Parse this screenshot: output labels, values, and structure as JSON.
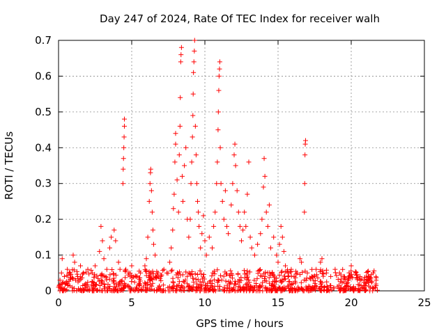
{
  "chart_data": {
    "type": "scatter",
    "title": "Day 247 of 2024, Rate Of TEC Index for receiver walh",
    "xlabel": "GPS time / hours",
    "ylabel": "ROTI / TECUs",
    "xlim": [
      0,
      25
    ],
    "ylim": [
      0,
      0.7
    ],
    "xticks": [
      0,
      5,
      10,
      15,
      20,
      25
    ],
    "yticks": [
      0,
      0.1,
      0.2,
      0.3,
      0.4,
      0.5,
      0.6,
      0.7
    ],
    "xtick_labels": [
      "0",
      "5",
      "10",
      "15",
      "20",
      "25"
    ],
    "ytick_labels": [
      "0",
      "0.1",
      "0.2",
      "0.3",
      "0.4",
      "0.5",
      "0.6",
      "0.7"
    ],
    "grid": true,
    "marker": "+",
    "color": "#ff0000",
    "series": [
      {
        "name": "ROTI",
        "points": [
          [
            0.0,
            0.01
          ],
          [
            0.1,
            0.03
          ],
          [
            0.2,
            0.05
          ],
          [
            0.25,
            0.09
          ],
          [
            0.4,
            0.04
          ],
          [
            0.6,
            0.06
          ],
          [
            0.8,
            0.05
          ],
          [
            1.0,
            0.1
          ],
          [
            1.1,
            0.08
          ],
          [
            1.3,
            0.04
          ],
          [
            1.5,
            0.07
          ],
          [
            1.7,
            0.05
          ],
          [
            2.0,
            0.06
          ],
          [
            2.3,
            0.05
          ],
          [
            2.5,
            0.07
          ],
          [
            2.8,
            0.11
          ],
          [
            2.9,
            0.18
          ],
          [
            3.0,
            0.14
          ],
          [
            3.1,
            0.09
          ],
          [
            3.3,
            0.06
          ],
          [
            3.5,
            0.12
          ],
          [
            3.6,
            0.15
          ],
          [
            3.8,
            0.17
          ],
          [
            3.9,
            0.14
          ],
          [
            4.1,
            0.08
          ],
          [
            4.2,
            0.06
          ],
          [
            4.4,
            0.3
          ],
          [
            4.42,
            0.34
          ],
          [
            4.44,
            0.37
          ],
          [
            4.46,
            0.4
          ],
          [
            4.48,
            0.43
          ],
          [
            4.5,
            0.46
          ],
          [
            4.5,
            0.48
          ],
          [
            4.6,
            0.06
          ],
          [
            4.8,
            0.05
          ],
          [
            5.0,
            0.07
          ],
          [
            5.3,
            0.04
          ],
          [
            5.6,
            0.05
          ],
          [
            5.9,
            0.07
          ],
          [
            6.0,
            0.09
          ],
          [
            6.1,
            0.15
          ],
          [
            6.2,
            0.25
          ],
          [
            6.25,
            0.3
          ],
          [
            6.28,
            0.33
          ],
          [
            6.3,
            0.34
          ],
          [
            6.35,
            0.28
          ],
          [
            6.4,
            0.22
          ],
          [
            6.45,
            0.17
          ],
          [
            6.5,
            0.13
          ],
          [
            6.6,
            0.1
          ],
          [
            6.8,
            0.05
          ],
          [
            7.0,
            0.04
          ],
          [
            7.2,
            0.06
          ],
          [
            7.4,
            0.05
          ],
          [
            7.6,
            0.08
          ],
          [
            7.7,
            0.12
          ],
          [
            7.8,
            0.17
          ],
          [
            7.85,
            0.23
          ],
          [
            7.9,
            0.27
          ],
          [
            7.95,
            0.36
          ],
          [
            8.0,
            0.41
          ],
          [
            8.0,
            0.44
          ],
          [
            8.1,
            0.31
          ],
          [
            8.2,
            0.22
          ],
          [
            8.25,
            0.38
          ],
          [
            8.3,
            0.46
          ],
          [
            8.32,
            0.54
          ],
          [
            8.35,
            0.64
          ],
          [
            8.37,
            0.66
          ],
          [
            8.4,
            0.68
          ],
          [
            8.45,
            0.32
          ],
          [
            8.5,
            0.25
          ],
          [
            8.6,
            0.35
          ],
          [
            8.7,
            0.4
          ],
          [
            8.8,
            0.2
          ],
          [
            8.9,
            0.15
          ],
          [
            9.0,
            0.2
          ],
          [
            9.05,
            0.3
          ],
          [
            9.1,
            0.36
          ],
          [
            9.15,
            0.43
          ],
          [
            9.18,
            0.49
          ],
          [
            9.2,
            0.55
          ],
          [
            9.22,
            0.61
          ],
          [
            9.25,
            0.64
          ],
          [
            9.28,
            0.67
          ],
          [
            9.3,
            0.7
          ],
          [
            9.35,
            0.46
          ],
          [
            9.4,
            0.38
          ],
          [
            9.45,
            0.3
          ],
          [
            9.5,
            0.25
          ],
          [
            9.55,
            0.22
          ],
          [
            9.6,
            0.18
          ],
          [
            9.7,
            0.12
          ],
          [
            9.8,
            0.16
          ],
          [
            9.9,
            0.21
          ],
          [
            10.0,
            0.14
          ],
          [
            10.1,
            0.1
          ],
          [
            10.3,
            0.15
          ],
          [
            10.5,
            0.12
          ],
          [
            10.6,
            0.18
          ],
          [
            10.7,
            0.22
          ],
          [
            10.8,
            0.3
          ],
          [
            10.85,
            0.36
          ],
          [
            10.9,
            0.45
          ],
          [
            10.92,
            0.5
          ],
          [
            10.95,
            0.56
          ],
          [
            10.97,
            0.6
          ],
          [
            11.0,
            0.62
          ],
          [
            11.02,
            0.64
          ],
          [
            11.05,
            0.4
          ],
          [
            11.1,
            0.3
          ],
          [
            11.2,
            0.25
          ],
          [
            11.3,
            0.2
          ],
          [
            11.4,
            0.28
          ],
          [
            11.5,
            0.18
          ],
          [
            11.6,
            0.16
          ],
          [
            11.8,
            0.24
          ],
          [
            11.9,
            0.3
          ],
          [
            12.0,
            0.38
          ],
          [
            12.05,
            0.41
          ],
          [
            12.1,
            0.35
          ],
          [
            12.2,
            0.28
          ],
          [
            12.3,
            0.22
          ],
          [
            12.4,
            0.18
          ],
          [
            12.5,
            0.14
          ],
          [
            12.6,
            0.17
          ],
          [
            12.7,
            0.22
          ],
          [
            12.8,
            0.18
          ],
          [
            12.9,
            0.27
          ],
          [
            13.0,
            0.36
          ],
          [
            13.1,
            0.15
          ],
          [
            13.2,
            0.12
          ],
          [
            13.4,
            0.1
          ],
          [
            13.6,
            0.13
          ],
          [
            13.8,
            0.16
          ],
          [
            13.9,
            0.2
          ],
          [
            14.0,
            0.29
          ],
          [
            14.05,
            0.37
          ],
          [
            14.1,
            0.32
          ],
          [
            14.2,
            0.22
          ],
          [
            14.3,
            0.18
          ],
          [
            14.4,
            0.24
          ],
          [
            14.5,
            0.12
          ],
          [
            14.7,
            0.15
          ],
          [
            14.9,
            0.1
          ],
          [
            15.0,
            0.08
          ],
          [
            15.1,
            0.13
          ],
          [
            15.2,
            0.18
          ],
          [
            15.3,
            0.15
          ],
          [
            15.4,
            0.11
          ],
          [
            15.5,
            0.07
          ],
          [
            15.7,
            0.05
          ],
          [
            15.9,
            0.06
          ],
          [
            16.1,
            0.04
          ],
          [
            16.3,
            0.05
          ],
          [
            16.5,
            0.09
          ],
          [
            16.6,
            0.08
          ],
          [
            16.8,
            0.22
          ],
          [
            16.82,
            0.3
          ],
          [
            16.84,
            0.38
          ],
          [
            16.86,
            0.41
          ],
          [
            16.88,
            0.42
          ],
          [
            17.0,
            0.05
          ],
          [
            17.3,
            0.04
          ],
          [
            17.6,
            0.06
          ],
          [
            17.9,
            0.08
          ],
          [
            18.0,
            0.09
          ],
          [
            18.3,
            0.05
          ],
          [
            18.6,
            0.04
          ],
          [
            18.9,
            0.06
          ],
          [
            19.2,
            0.05
          ],
          [
            19.5,
            0.04
          ],
          [
            19.8,
            0.03
          ],
          [
            20.0,
            0.07
          ],
          [
            20.3,
            0.05
          ],
          [
            20.6,
            0.04
          ],
          [
            20.9,
            0.03
          ],
          [
            21.2,
            0.04
          ],
          [
            21.5,
            0.05
          ],
          [
            21.7,
            0.03
          ]
        ],
        "dense_band": {
          "x_range": [
            0,
            21.8
          ],
          "y_range": [
            0,
            0.06
          ],
          "point_count": 900
        }
      }
    ]
  }
}
